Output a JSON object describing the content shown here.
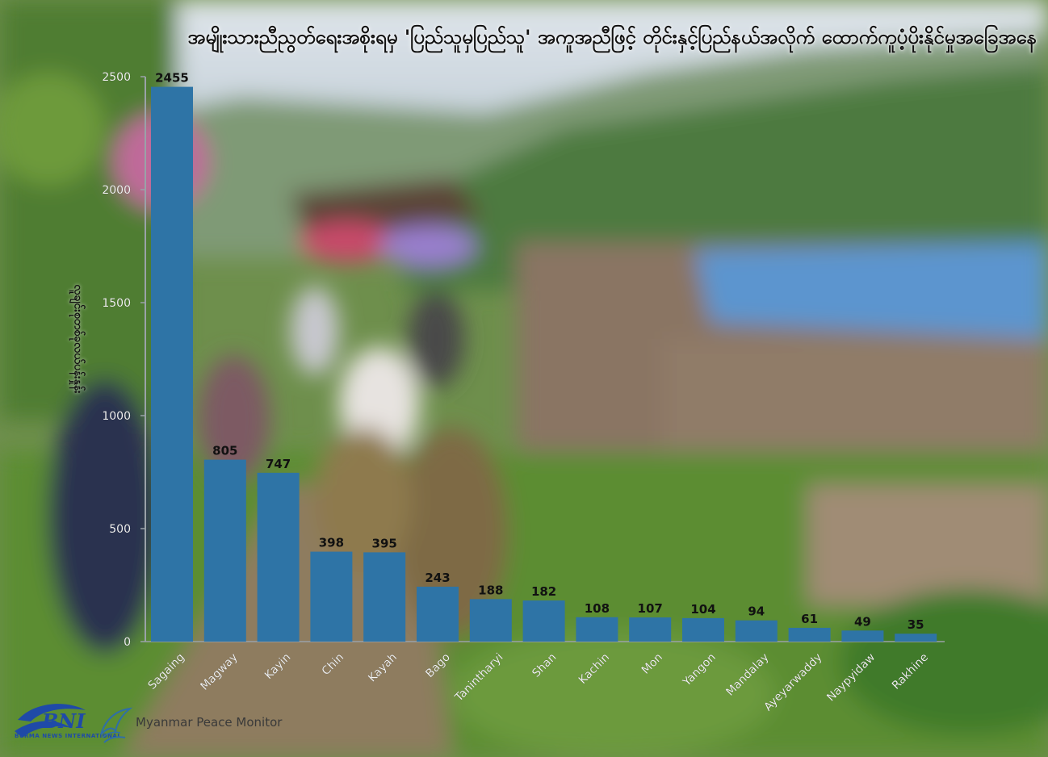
{
  "chart_data": {
    "type": "bar",
    "title": "အမျိုးသားညီညွတ်ရေးအစိုးရမှ 'ပြည်သူမှပြည်သူ' အကူအညီဖြင့် တိုင်းနှင့်ပြည်နယ်အလိုက် ထောက်ကူပံ့ပိုးနိုင်မှုအခြေအနေ",
    "ylabel": "လူချင်းစုတစ်ခုလယ်ပန်းနှုန်း",
    "xlabel": "",
    "categories": [
      "Sagaing",
      "Magway",
      "Kayin",
      "Chin",
      "Kayah",
      "Bago",
      "Tanintharyi",
      "Shan",
      "Kachin",
      "Mon",
      "Yangon",
      "Mandalay",
      "Ayeyarwaddy",
      "Naypyidaw",
      "Rakhine"
    ],
    "values": [
      2455,
      805,
      747,
      398,
      395,
      243,
      188,
      182,
      108,
      107,
      104,
      94,
      61,
      49,
      35
    ],
    "yticks": [
      0,
      500,
      1000,
      1500,
      2000,
      2500
    ],
    "ylim": [
      0,
      2500
    ],
    "grid": false,
    "legend": "none",
    "bar_color": "#2e74a6"
  },
  "branding": {
    "bni_mark": "BNI",
    "bni_caption": "BURMA NEWS INTERNATIONAL",
    "mpm_name": "Myanmar Peace Monitor"
  },
  "colors": {
    "sky": "#c9d6e2",
    "mountain": "#5a7c4f",
    "vegetation": "#4f8a35",
    "roof_blue": "#4f8fd0",
    "label_text": "#111111",
    "tick_label": "#ffffff"
  },
  "icons": {
    "bni_logo": "bni-swirl-logo",
    "mpm_logo": "dove-logo"
  }
}
